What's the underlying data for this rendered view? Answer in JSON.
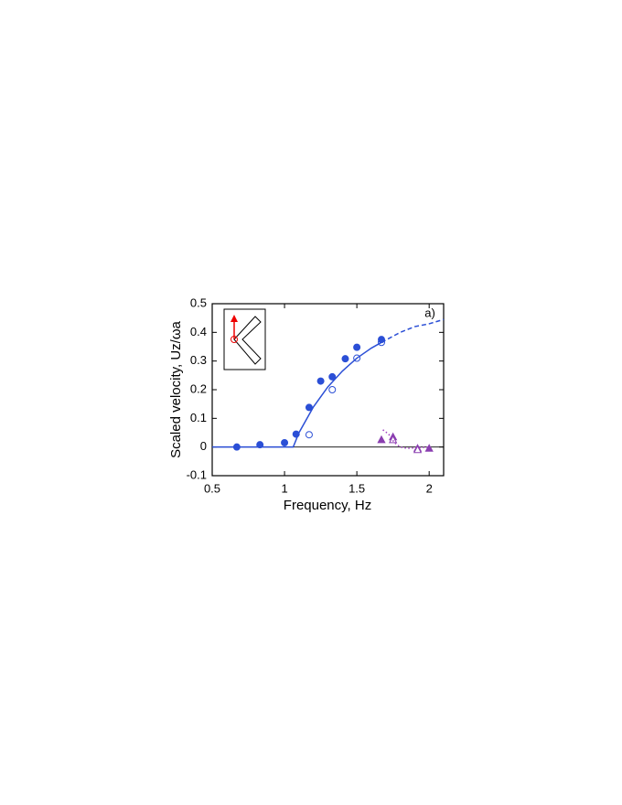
{
  "chart_data": {
    "type": "scatter",
    "xlabel": "Frequency, Hz",
    "ylabel": "Scaled velocity, Uz/ωa",
    "annotation": "a)",
    "xlim": [
      0.5,
      2.1
    ],
    "ylim": [
      -0.1,
      0.5
    ],
    "xticks": [
      0.5,
      1,
      1.5,
      2
    ],
    "yticks": [
      -0.1,
      0,
      0.1,
      0.2,
      0.3,
      0.4,
      0.5
    ],
    "zero_line": true,
    "series": [
      {
        "marker": "circle",
        "filled": true,
        "color": "#2b4fd6",
        "x": [
          0.67,
          0.83,
          1.0,
          1.08,
          1.17,
          1.25,
          1.33,
          1.42,
          1.5,
          1.67
        ],
        "values": [
          0.0,
          0.008,
          0.015,
          0.045,
          0.138,
          0.23,
          0.245,
          0.308,
          0.348,
          0.375
        ]
      },
      {
        "marker": "circle",
        "filled": false,
        "color": "#2b4fd6",
        "x": [
          1.17,
          1.33,
          1.5,
          1.67
        ],
        "values": [
          0.043,
          0.2,
          0.31,
          0.365
        ]
      },
      {
        "marker": "triangle",
        "filled": true,
        "color": "#8a3fb0",
        "x": [
          1.67,
          1.75,
          1.92,
          2.0
        ],
        "values": [
          0.025,
          0.035,
          -0.005,
          -0.005
        ]
      },
      {
        "marker": "triangle",
        "filled": false,
        "color": "#8a3fb0",
        "x": [
          1.75,
          1.92
        ],
        "values": [
          0.025,
          -0.01
        ]
      },
      {
        "marker": "line",
        "style": "solid",
        "color": "#2b4fd6",
        "x": [
          0.5,
          1.06,
          1.1,
          1.2,
          1.3,
          1.4,
          1.5,
          1.6,
          1.67
        ],
        "values": [
          0,
          0,
          0.05,
          0.14,
          0.21,
          0.265,
          0.31,
          0.345,
          0.365
        ]
      },
      {
        "marker": "line",
        "style": "dashed",
        "color": "#2b4fd6",
        "x": [
          1.67,
          1.8,
          1.9,
          2.0,
          2.1
        ],
        "values": [
          0.365,
          0.4,
          0.42,
          0.43,
          0.445
        ]
      },
      {
        "marker": "line",
        "style": "dotted",
        "color": "#a040c0",
        "x": [
          1.68,
          1.72,
          1.76,
          1.8,
          1.85,
          1.9,
          2.0
        ],
        "values": [
          0.06,
          0.045,
          0.015,
          0.0,
          -0.005,
          -0.003,
          0.0
        ]
      }
    ]
  }
}
